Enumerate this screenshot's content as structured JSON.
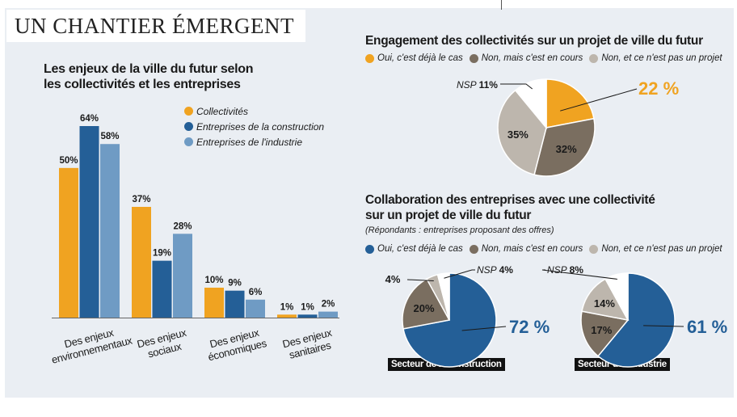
{
  "title": "UN CHANTIER ÉMERGENT",
  "colors": {
    "collectivites": "#f0a321",
    "construction": "#245f97",
    "industrie": "#6f9bc4",
    "oui": "#f0a321",
    "non_en_cours": "#7a6e60",
    "non_pas_projet": "#bdb6ad",
    "nsp": "#ffffff",
    "oui_entreprises": "#245f97"
  },
  "left_chart": {
    "heading_line1": "Les enjeux de la ville du futur selon",
    "heading_line2": "les collectivités et les entreprises",
    "legend": [
      "Collectivités",
      "Entreprises de la construction",
      "Entreprises de l'industrie"
    ]
  },
  "top_right": {
    "heading": "Engagement des collectivités sur un projet de ville du futur",
    "legend": [
      "Oui, c'est déjà le cas",
      "Non, mais c'est en cours",
      "Non, et ce n'est pas un projet"
    ],
    "nsp_prefix": "NSP",
    "big_label": "22 %"
  },
  "bottom_right": {
    "heading_line1": "Collaboration des entreprises avec une collectivité",
    "heading_line2": "sur un projet de ville du futur",
    "note": "(Répondants : entreprises proposant des offres)",
    "legend": [
      "Oui, c'est déjà le cas",
      "Non, mais c'est en cours",
      "Non, et ce n'est pas un projet"
    ],
    "nsp_prefix": "NSP",
    "pie1_caption": "Secteur de la construction",
    "pie1_big": "72 %",
    "pie2_caption": "Secteur de l'industrie",
    "pie2_big": "61 %"
  },
  "chart_data": [
    {
      "type": "bar",
      "title": "Les enjeux de la ville du futur selon les collectivités et les entreprises",
      "categories": [
        [
          "Des enjeux",
          "environnementaux"
        ],
        [
          "Des enjeux",
          "sociaux"
        ],
        [
          "Des enjeux",
          "économiques"
        ],
        [
          "Des enjeux",
          "sanitaires"
        ]
      ],
      "series": [
        {
          "name": "Collectivités",
          "values": [
            50,
            37,
            10,
            1
          ],
          "labels": [
            "50%",
            "37%",
            "10%",
            "1%"
          ]
        },
        {
          "name": "Entreprises de la construction",
          "values": [
            64,
            19,
            9,
            1
          ],
          "labels": [
            "64%",
            "19%",
            "9%",
            "1%"
          ]
        },
        {
          "name": "Entreprises de l'industrie",
          "values": [
            58,
            28,
            6,
            2
          ],
          "labels": [
            "58%",
            "28%",
            "6%",
            "2%"
          ]
        }
      ],
      "ylim": [
        0,
        64
      ],
      "grid": false,
      "legend": "top-right"
    },
    {
      "type": "pie",
      "title": "Engagement des collectivités sur un projet de ville du futur",
      "slices": [
        {
          "name": "Oui, c'est déjà le cas",
          "value": 22,
          "label": "22 %"
        },
        {
          "name": "Non, mais c'est en cours",
          "value": 32,
          "label": "32%"
        },
        {
          "name": "Non, et ce n'est pas un projet",
          "value": 35,
          "label": "35%"
        },
        {
          "name": "NSP",
          "value": 11,
          "label": "11%"
        }
      ]
    },
    {
      "type": "pie",
      "title": "Secteur de la construction",
      "slices": [
        {
          "name": "Oui, c'est déjà le cas",
          "value": 72,
          "label": "72 %"
        },
        {
          "name": "Non, mais c'est en cours",
          "value": 20,
          "label": "20%"
        },
        {
          "name": "Non, et ce n'est pas un projet",
          "value": 4,
          "label": "4%"
        },
        {
          "name": "NSP",
          "value": 4,
          "label": "4%"
        }
      ]
    },
    {
      "type": "pie",
      "title": "Secteur de l'industrie",
      "slices": [
        {
          "name": "Oui, c'est déjà le cas",
          "value": 61,
          "label": "61 %"
        },
        {
          "name": "Non, mais c'est en cours",
          "value": 17,
          "label": "17%"
        },
        {
          "name": "Non, et ce n'est pas un projet",
          "value": 14,
          "label": "14%"
        },
        {
          "name": "NSP",
          "value": 8,
          "label": "8%"
        }
      ]
    }
  ]
}
